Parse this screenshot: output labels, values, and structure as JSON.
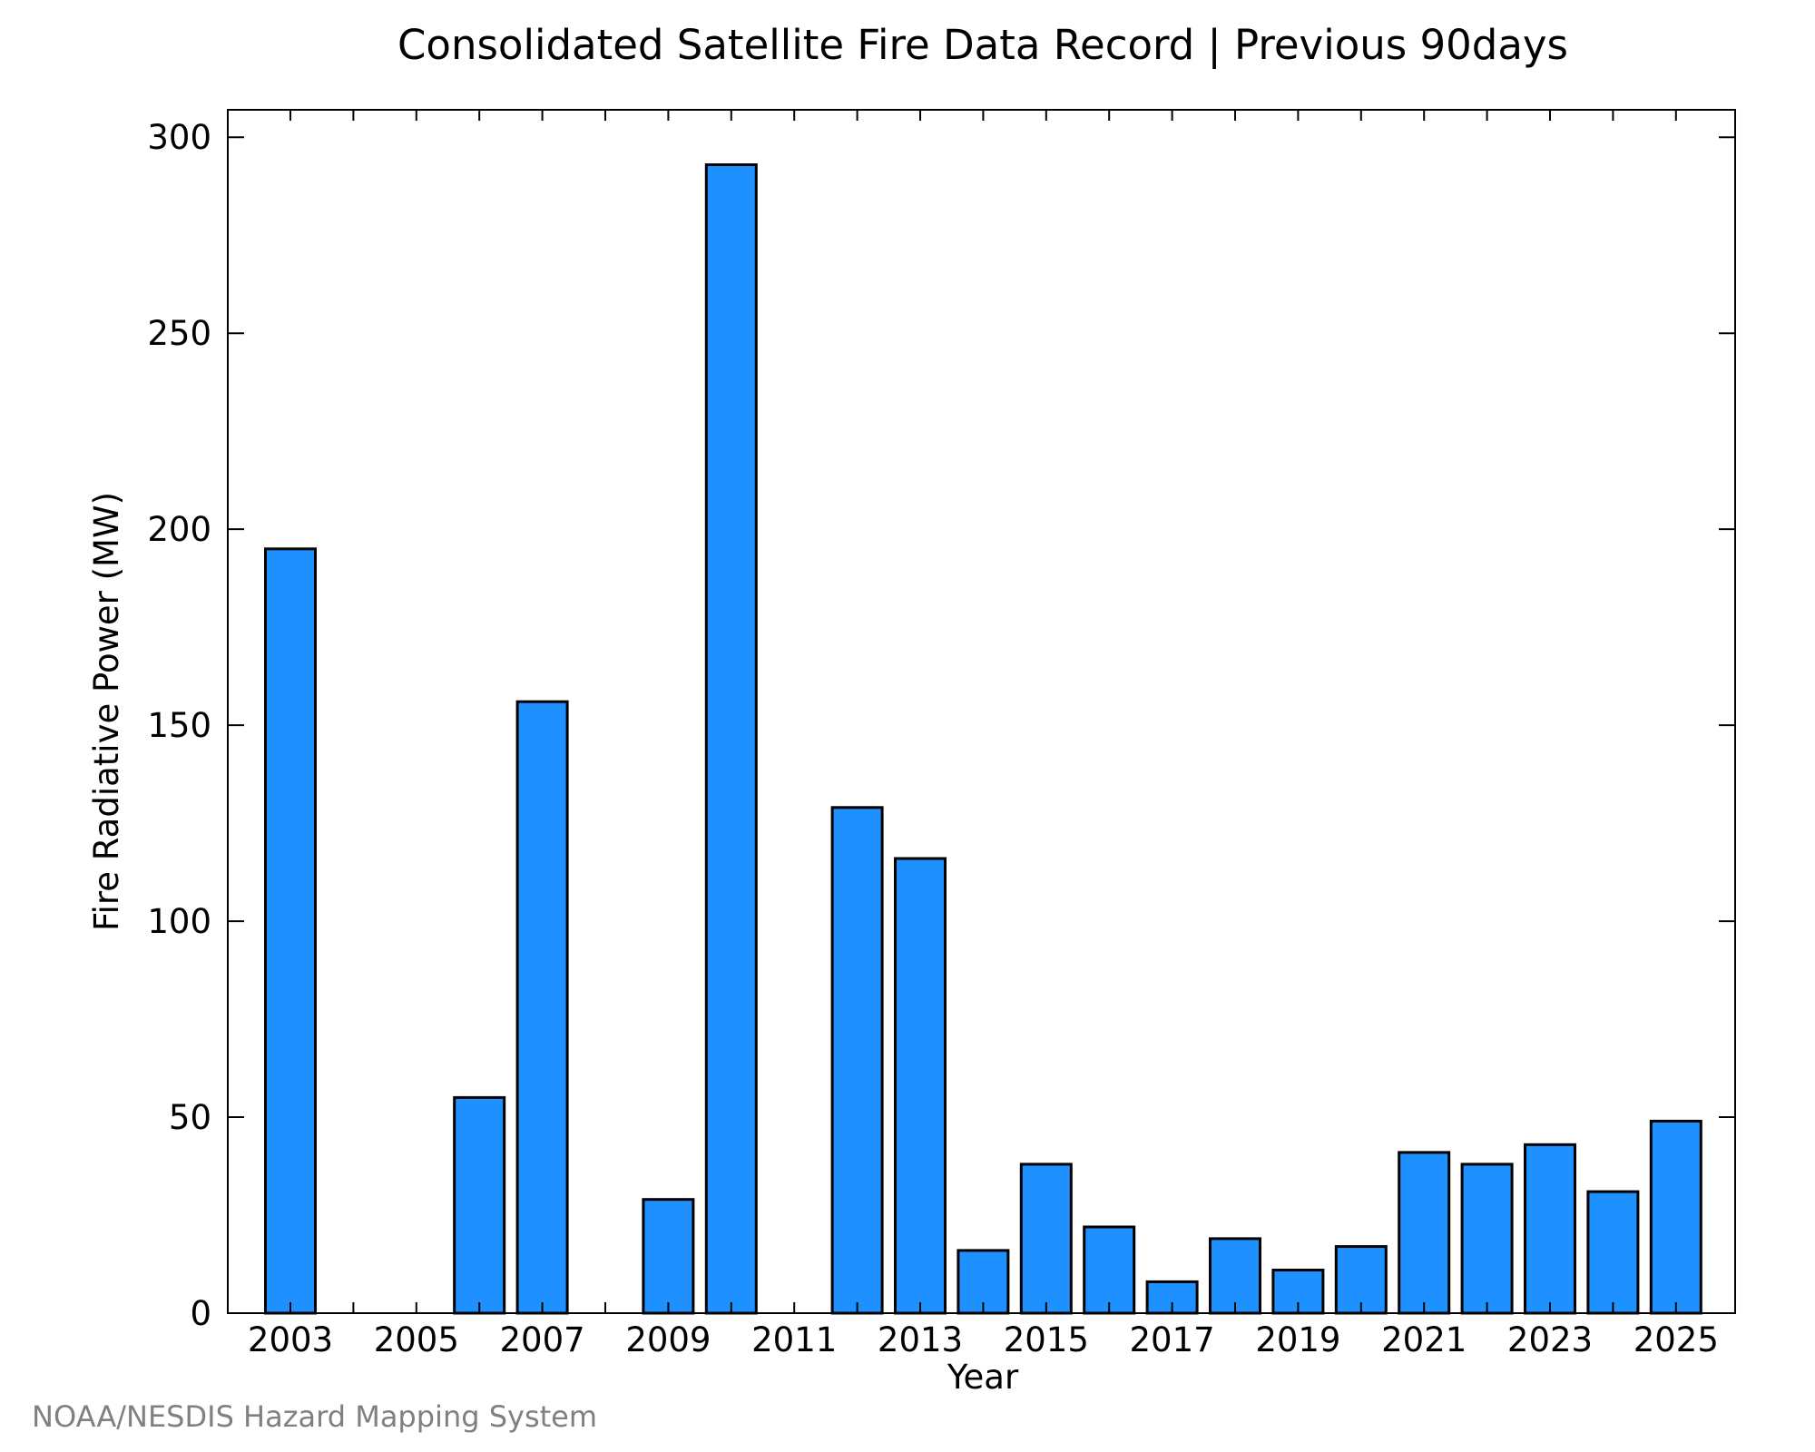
{
  "chart_data": {
    "type": "bar",
    "title": "Consolidated Satellite Fire Data Record | Previous 90days",
    "xlabel": "Year",
    "ylabel": "Fire Radiative Power (MW)",
    "categories": [
      "2003",
      "2004",
      "2005",
      "2006",
      "2007",
      "2008",
      "2009",
      "2010",
      "2011",
      "2012",
      "2013",
      "2014",
      "2015",
      "2016",
      "2017",
      "2018",
      "2019",
      "2020",
      "2021",
      "2022",
      "2023",
      "2024",
      "2025"
    ],
    "values": [
      195,
      0,
      0,
      55,
      156,
      0,
      29,
      293,
      0,
      129,
      116,
      16,
      38,
      22,
      8,
      19,
      11,
      17,
      41,
      38,
      43,
      31,
      49
    ],
    "x_tick_labels": [
      "2003",
      "2005",
      "2007",
      "2009",
      "2011",
      "2013",
      "2015",
      "2017",
      "2019",
      "2021",
      "2023",
      "2025"
    ],
    "y_ticks": [
      0,
      50,
      100,
      150,
      200,
      250,
      300
    ],
    "ylim": [
      0,
      307
    ],
    "grid": false,
    "bar_color": "#1E90FF",
    "bar_edge_color": "#000000",
    "credit": "NOAA/NESDIS Hazard Mapping System"
  }
}
